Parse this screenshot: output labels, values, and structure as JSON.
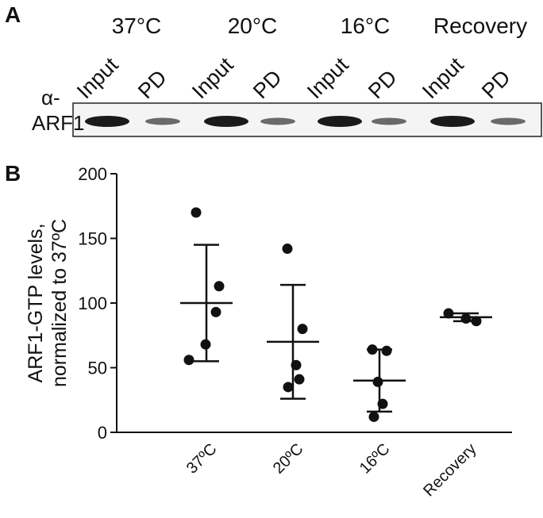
{
  "panels": {
    "a": "A",
    "b": "B"
  },
  "blot": {
    "conditions": [
      "37°C",
      "20°C",
      "16°C",
      "Recovery"
    ],
    "lanes": [
      "Input",
      "PD",
      "Input",
      "PD",
      "Input",
      "PD",
      "Input",
      "PD"
    ],
    "antibody": [
      "α-",
      "ARF1"
    ]
  },
  "chart_data": {
    "type": "scatter",
    "ylabel": [
      "ARF1-GTP levels,",
      "normalized to 37ºC"
    ],
    "categories": [
      "37ºC",
      "20ºC",
      "16ºC",
      "Recovery"
    ],
    "values": [
      [
        170,
        113,
        93,
        68,
        56
      ],
      [
        142,
        80,
        52,
        41,
        35
      ],
      [
        64,
        63,
        39,
        22,
        12
      ],
      [
        92,
        88,
        86
      ]
    ],
    "mean": [
      100,
      70,
      40,
      89
    ],
    "sd": [
      45,
      44,
      24,
      3
    ],
    "color": "#111111",
    "ylim": [
      0,
      200
    ],
    "yticks": [
      0,
      50,
      100,
      150,
      200
    ]
  }
}
